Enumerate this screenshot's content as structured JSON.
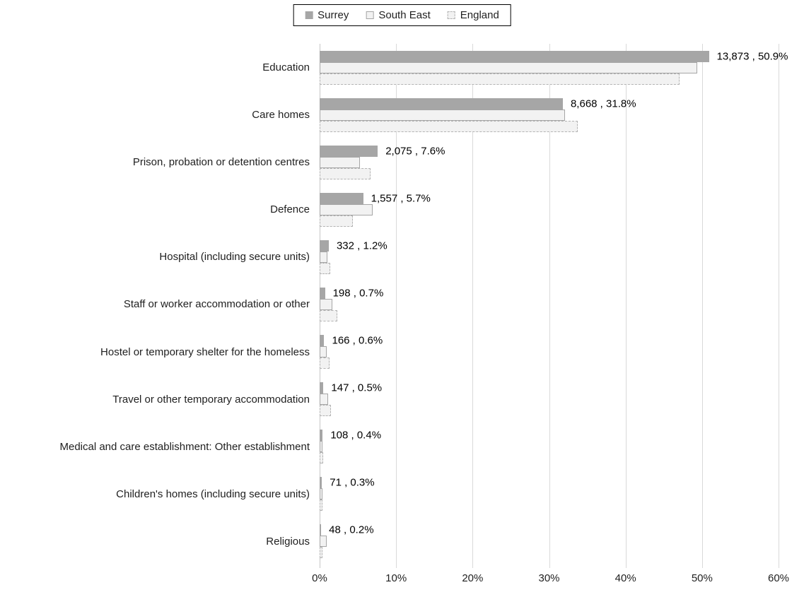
{
  "chart_data": {
    "type": "bar",
    "orientation": "horizontal",
    "title": "",
    "xlabel": "",
    "ylabel": "",
    "unit": "percent",
    "xlim": [
      0,
      60
    ],
    "x_tick_labels": [
      "0%",
      "10%",
      "20%",
      "30%",
      "40%",
      "50%",
      "60%"
    ],
    "x_tick_values": [
      0,
      10,
      20,
      30,
      40,
      50,
      60
    ],
    "grid": true,
    "legend_position": "top-center",
    "categories": [
      "Education",
      "Care homes",
      "Prison, probation or detention centres",
      "Defence",
      "Hospital (including secure units)",
      "Staff or worker accommodation or other",
      "Hostel or temporary shelter for the homeless",
      "Travel or other temporary accommodation",
      "Medical and care establishment: Other establishment",
      "Children's homes (including secure units)",
      "Religious"
    ],
    "series": [
      {
        "name": "Surrey",
        "style": "solid-gray",
        "values": [
          50.9,
          31.8,
          7.6,
          5.7,
          1.2,
          0.7,
          0.6,
          0.5,
          0.4,
          0.3,
          0.2
        ]
      },
      {
        "name": "South East",
        "style": "light-outline",
        "values": [
          49.4,
          32.1,
          5.3,
          6.9,
          1.0,
          1.7,
          0.9,
          1.1,
          0.4,
          0.4,
          0.9
        ]
      },
      {
        "name": "England",
        "style": "light-dashed",
        "values": [
          47.1,
          33.7,
          6.7,
          4.3,
          1.4,
          2.3,
          1.3,
          1.5,
          0.5,
          0.2,
          0.4
        ]
      }
    ],
    "surrey_counts": [
      13873,
      8668,
      2075,
      1557,
      332,
      198,
      166,
      147,
      108,
      71,
      48
    ],
    "data_labels": [
      "13,873 , 50.9%",
      "8,668 , 31.8%",
      "2,075 , 7.6%",
      "1,557 , 5.7%",
      "332 , 1.2%",
      "198 , 0.7%",
      "166 , 0.6%",
      "147 , 0.5%",
      "108 , 0.4%",
      "71 , 0.3%",
      "48 , 0.2%"
    ]
  },
  "colors": {
    "surrey_fill": "#a6a6a6",
    "light_fill": "#f2f2f2",
    "solid_outline": "#a6a6a6",
    "dashed_outline": "#b3b3b3",
    "gridline": "#d9d9d9",
    "axis_line": "#c6c6c6",
    "text": "#1f1f1f",
    "legend_border": "#000000",
    "background": "#ffffff"
  }
}
